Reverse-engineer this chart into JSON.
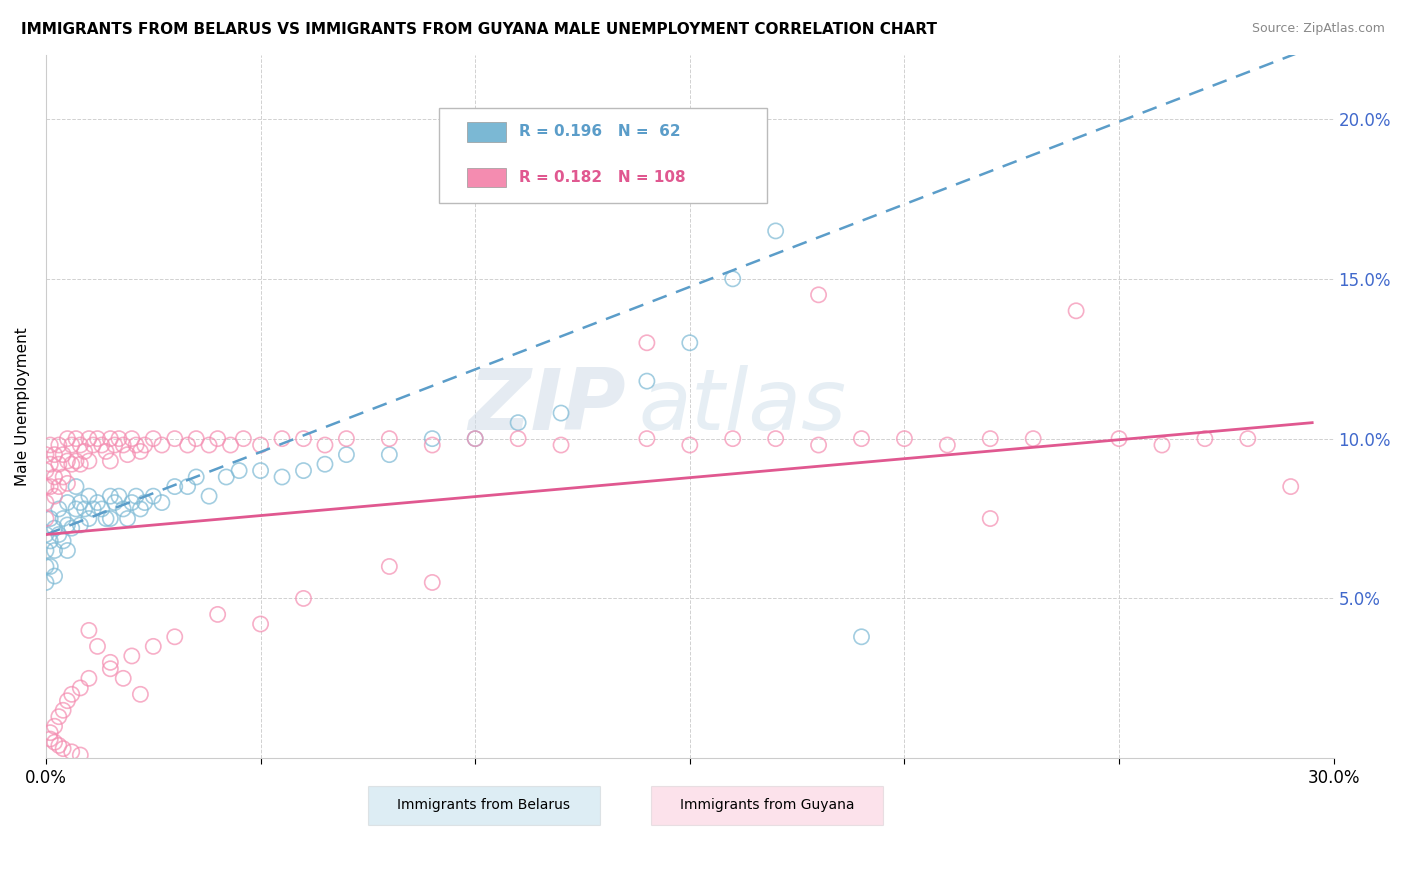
{
  "title": "IMMIGRANTS FROM BELARUS VS IMMIGRANTS FROM GUYANA MALE UNEMPLOYMENT CORRELATION CHART",
  "source": "Source: ZipAtlas.com",
  "ylabel": "Male Unemployment",
  "xlim": [
    0.0,
    0.3
  ],
  "ylim": [
    0.0,
    0.22
  ],
  "xticks": [
    0.0,
    0.05,
    0.1,
    0.15,
    0.2,
    0.25,
    0.3
  ],
  "yticks": [
    0.0,
    0.05,
    0.1,
    0.15,
    0.2
  ],
  "color_belarus": "#7bb8d4",
  "color_guyana": "#f48cb0",
  "trendline_belarus_color": "#5b9dc9",
  "trendline_guyana_color": "#e05890",
  "watermark_color": "#d0dce8",
  "right_axis_color": "#4169cc",
  "legend_r1": "R = 0.196",
  "legend_n1": "N =  62",
  "legend_r2": "R = 0.182",
  "legend_n2": "N = 108",
  "belarus_x": [
    0.0,
    0.0,
    0.0,
    0.0,
    0.001,
    0.001,
    0.001,
    0.002,
    0.002,
    0.002,
    0.003,
    0.003,
    0.004,
    0.004,
    0.005,
    0.005,
    0.005,
    0.006,
    0.007,
    0.007,
    0.008,
    0.008,
    0.009,
    0.01,
    0.01,
    0.011,
    0.012,
    0.013,
    0.014,
    0.015,
    0.015,
    0.016,
    0.017,
    0.018,
    0.019,
    0.02,
    0.021,
    0.022,
    0.023,
    0.025,
    0.027,
    0.03,
    0.033,
    0.035,
    0.038,
    0.042,
    0.045,
    0.05,
    0.055,
    0.06,
    0.065,
    0.07,
    0.08,
    0.09,
    0.1,
    0.11,
    0.12,
    0.14,
    0.15,
    0.16,
    0.17,
    0.19
  ],
  "belarus_y": [
    0.07,
    0.065,
    0.06,
    0.055,
    0.075,
    0.068,
    0.06,
    0.072,
    0.065,
    0.057,
    0.078,
    0.07,
    0.075,
    0.068,
    0.08,
    0.073,
    0.065,
    0.072,
    0.085,
    0.078,
    0.08,
    0.073,
    0.078,
    0.082,
    0.075,
    0.078,
    0.08,
    0.078,
    0.075,
    0.082,
    0.075,
    0.08,
    0.082,
    0.078,
    0.075,
    0.08,
    0.082,
    0.078,
    0.08,
    0.082,
    0.08,
    0.085,
    0.085,
    0.088,
    0.082,
    0.088,
    0.09,
    0.09,
    0.088,
    0.09,
    0.092,
    0.095,
    0.095,
    0.1,
    0.1,
    0.105,
    0.108,
    0.118,
    0.13,
    0.15,
    0.165,
    0.038
  ],
  "guyana_x": [
    0.0,
    0.0,
    0.0,
    0.0,
    0.0,
    0.001,
    0.001,
    0.001,
    0.002,
    0.002,
    0.002,
    0.003,
    0.003,
    0.003,
    0.004,
    0.004,
    0.005,
    0.005,
    0.005,
    0.006,
    0.006,
    0.007,
    0.007,
    0.008,
    0.008,
    0.009,
    0.01,
    0.01,
    0.011,
    0.012,
    0.013,
    0.014,
    0.015,
    0.015,
    0.016,
    0.017,
    0.018,
    0.019,
    0.02,
    0.021,
    0.022,
    0.023,
    0.025,
    0.027,
    0.03,
    0.033,
    0.035,
    0.038,
    0.04,
    0.043,
    0.046,
    0.05,
    0.055,
    0.06,
    0.065,
    0.07,
    0.08,
    0.09,
    0.1,
    0.11,
    0.12,
    0.14,
    0.15,
    0.16,
    0.17,
    0.18,
    0.19,
    0.2,
    0.21,
    0.22,
    0.23,
    0.24,
    0.25,
    0.26,
    0.27,
    0.28,
    0.29,
    0.14,
    0.18,
    0.22,
    0.08,
    0.09,
    0.06,
    0.04,
    0.05,
    0.03,
    0.025,
    0.02,
    0.015,
    0.01,
    0.008,
    0.006,
    0.005,
    0.004,
    0.003,
    0.002,
    0.001,
    0.001,
    0.002,
    0.003,
    0.004,
    0.006,
    0.008,
    0.01,
    0.012,
    0.015,
    0.018,
    0.022
  ],
  "guyana_y": [
    0.095,
    0.09,
    0.085,
    0.08,
    0.075,
    0.098,
    0.092,
    0.085,
    0.095,
    0.088,
    0.082,
    0.098,
    0.092,
    0.085,
    0.095,
    0.088,
    0.1,
    0.093,
    0.086,
    0.098,
    0.092,
    0.1,
    0.093,
    0.098,
    0.092,
    0.096,
    0.1,
    0.093,
    0.098,
    0.1,
    0.098,
    0.096,
    0.1,
    0.093,
    0.098,
    0.1,
    0.098,
    0.095,
    0.1,
    0.098,
    0.096,
    0.098,
    0.1,
    0.098,
    0.1,
    0.098,
    0.1,
    0.098,
    0.1,
    0.098,
    0.1,
    0.098,
    0.1,
    0.1,
    0.098,
    0.1,
    0.1,
    0.098,
    0.1,
    0.1,
    0.098,
    0.1,
    0.098,
    0.1,
    0.1,
    0.098,
    0.1,
    0.1,
    0.098,
    0.1,
    0.1,
    0.14,
    0.1,
    0.098,
    0.1,
    0.1,
    0.085,
    0.13,
    0.145,
    0.075,
    0.06,
    0.055,
    0.05,
    0.045,
    0.042,
    0.038,
    0.035,
    0.032,
    0.028,
    0.025,
    0.022,
    0.02,
    0.018,
    0.015,
    0.013,
    0.01,
    0.008,
    0.006,
    0.005,
    0.004,
    0.003,
    0.002,
    0.001,
    0.04,
    0.035,
    0.03,
    0.025,
    0.02
  ]
}
